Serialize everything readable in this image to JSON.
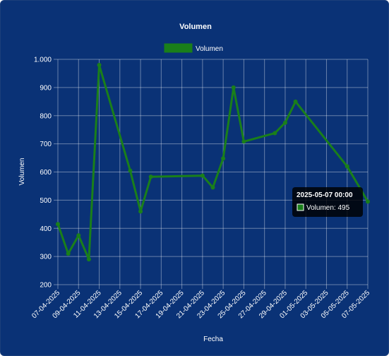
{
  "chart_data": {
    "type": "line",
    "title": "Volumen",
    "xlabel": "Fecha",
    "ylabel": "Volumen",
    "ylim": [
      200,
      1000
    ],
    "yticks": [
      200,
      300,
      400,
      500,
      600,
      700,
      800,
      900,
      1000
    ],
    "ytick_labels": [
      "200",
      "300",
      "400",
      "500",
      "600",
      "700",
      "800",
      "900",
      "1.000"
    ],
    "xlim": [
      "2025-04-07",
      "2025-05-07"
    ],
    "xtick_labels": [
      "07-04-2025",
      "09-04-2025",
      "11-04-2025",
      "13-04-2025",
      "15-04-2025",
      "17-04-2025",
      "19-04-2025",
      "21-04-2025",
      "23-04-2025",
      "25-04-2025",
      "27-04-2025",
      "29-04-2025",
      "01-05-2025",
      "03-05-2025",
      "05-05-2025",
      "07-05-2025"
    ],
    "grid": true,
    "legend": "top",
    "series": [
      {
        "name": "Volumen",
        "color": "#1a7f1a",
        "points": [
          {
            "x": "2025-04-07",
            "y": 415
          },
          {
            "x": "2025-04-08",
            "y": 310
          },
          {
            "x": "2025-04-09",
            "y": 375
          },
          {
            "x": "2025-04-10",
            "y": 290
          },
          {
            "x": "2025-04-11",
            "y": 980
          },
          {
            "x": "2025-04-14",
            "y": 605
          },
          {
            "x": "2025-04-15",
            "y": 460
          },
          {
            "x": "2025-04-16",
            "y": 583
          },
          {
            "x": "2025-04-21",
            "y": 587
          },
          {
            "x": "2025-04-22",
            "y": 545
          },
          {
            "x": "2025-04-23",
            "y": 648
          },
          {
            "x": "2025-04-24",
            "y": 900
          },
          {
            "x": "2025-04-25",
            "y": 708
          },
          {
            "x": "2025-04-28",
            "y": 738
          },
          {
            "x": "2025-04-29",
            "y": 775
          },
          {
            "x": "2025-04-30",
            "y": 850
          },
          {
            "x": "2025-05-05",
            "y": 620
          },
          {
            "x": "2025-05-07",
            "y": 495
          }
        ]
      }
    ],
    "tooltip": {
      "title": "2025-05-07 00:00",
      "label": "Volumen: 495"
    }
  }
}
